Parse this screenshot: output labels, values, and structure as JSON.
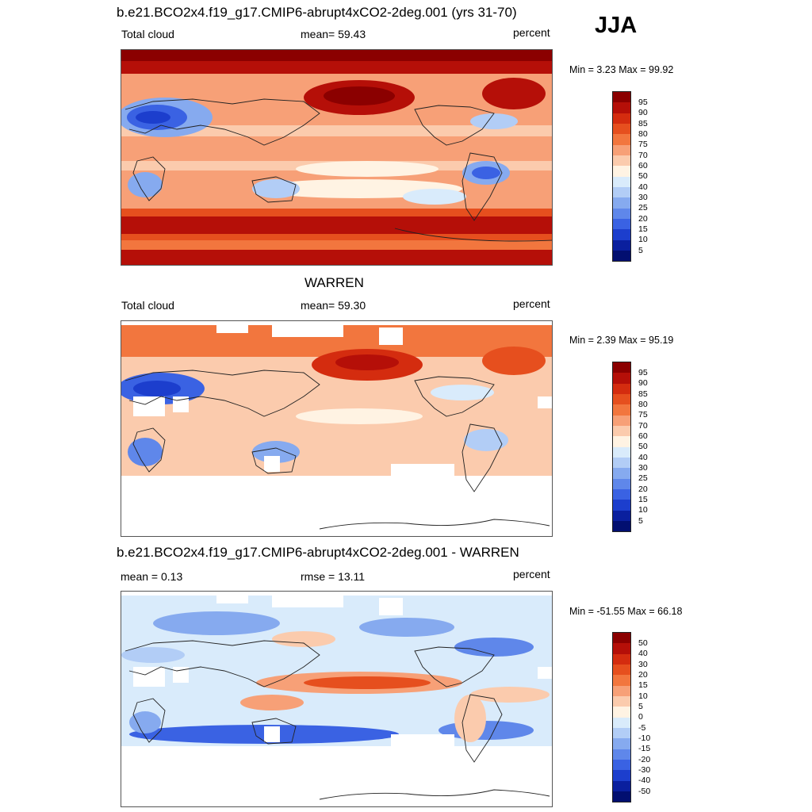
{
  "season": "JJA",
  "units": "percent",
  "panels": [
    {
      "title": "b.e21.BCO2x4.f19_g17.CMIP6-abrupt4xCO2-2deg.001 (yrs 31-70)",
      "left_label": "Total cloud",
      "center_label": "mean=  59.43",
      "units": "percent",
      "minmax": "Min =   3.23 Max =  99.92",
      "colorbar_labels": [
        "95",
        "90",
        "85",
        "80",
        "75",
        "70",
        "60",
        "50",
        "40",
        "30",
        "25",
        "20",
        "15",
        "10",
        "5"
      ],
      "colorbar_colors": [
        "#8b0000",
        "#b50f08",
        "#d42c0f",
        "#e64f1e",
        "#f2763e",
        "#f7a077",
        "#fbcbad",
        "#fff3e3",
        "#d9ebfb",
        "#b2cdf6",
        "#86aaef",
        "#5f87ea",
        "#3a62e3",
        "#1c3ecd",
        "#0a1f9e",
        "#020f70"
      ]
    },
    {
      "title": "WARREN",
      "left_label": "Total cloud",
      "center_label": "mean=  59.30",
      "units": "percent",
      "minmax": "Min =   2.39 Max =  95.19",
      "colorbar_labels": [
        "95",
        "90",
        "85",
        "80",
        "75",
        "70",
        "60",
        "50",
        "40",
        "30",
        "25",
        "20",
        "15",
        "10",
        "5"
      ],
      "colorbar_colors": [
        "#8b0000",
        "#b50f08",
        "#d42c0f",
        "#e64f1e",
        "#f2763e",
        "#f7a077",
        "#fbcbad",
        "#fff3e3",
        "#d9ebfb",
        "#b2cdf6",
        "#86aaef",
        "#5f87ea",
        "#3a62e3",
        "#1c3ecd",
        "#0a1f9e",
        "#020f70"
      ]
    },
    {
      "title": "b.e21.BCO2x4.f19_g17.CMIP6-abrupt4xCO2-2deg.001 - WARREN",
      "left_label": "mean =   0.13",
      "center_label": "rmse =  13.11",
      "units": "percent",
      "minmax": "Min = -51.55 Max =  66.18",
      "colorbar_labels": [
        "50",
        "40",
        "30",
        "20",
        "15",
        "10",
        "5",
        "0",
        "-5",
        "-10",
        "-15",
        "-20",
        "-30",
        "-40",
        "-50"
      ],
      "colorbar_colors": [
        "#8b0000",
        "#b50f08",
        "#d42c0f",
        "#e64f1e",
        "#f2763e",
        "#f7a077",
        "#fbcbad",
        "#fff3e3",
        "#d9ebfb",
        "#b2cdf6",
        "#86aaef",
        "#5f87ea",
        "#3a62e3",
        "#1c3ecd",
        "#0a1f9e",
        "#020f70"
      ]
    }
  ]
}
